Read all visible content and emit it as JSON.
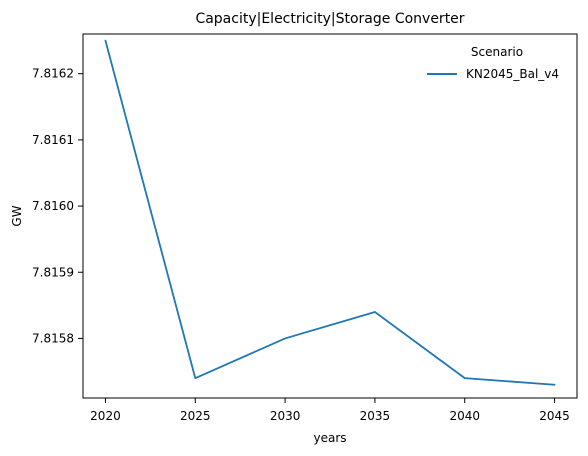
{
  "chart_data": {
    "type": "line",
    "title": "Capacity|Electricity|Storage Converter",
    "xlabel": "years",
    "ylabel": "GW",
    "x": [
      2020,
      2025,
      2030,
      2035,
      2040,
      2045
    ],
    "x_ticks": [
      "2020",
      "2025",
      "2030",
      "2035",
      "2040",
      "2045"
    ],
    "y_ticks": [
      "7.8158",
      "7.8159",
      "7.8160",
      "7.8161",
      "7.8162"
    ],
    "xlim": [
      2018.75,
      2046.25
    ],
    "ylim": [
      7.81571,
      7.81626
    ],
    "grid": false,
    "legend": {
      "title": "Scenario",
      "placement": "top-right"
    },
    "series": [
      {
        "name": "KN2045_Bal_v4",
        "color": "#1f77b4",
        "values": [
          7.81625,
          7.81574,
          7.8158,
          7.81584,
          7.81574,
          7.81573
        ]
      }
    ]
  }
}
